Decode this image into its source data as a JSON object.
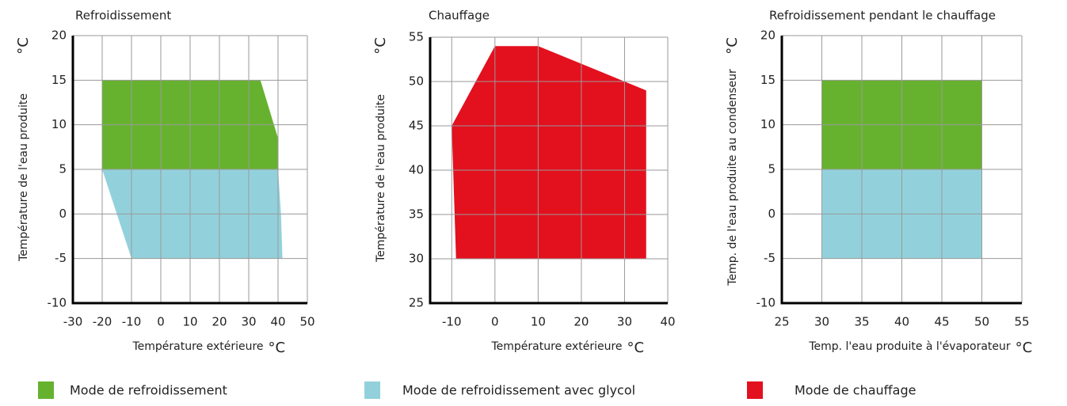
{
  "chart_data": [
    {
      "type": "polygon",
      "title": "Refroidissement",
      "xlabel": "Température extérieure",
      "xunit": "°C",
      "ylabel": "Température de l'eau produite",
      "yunit": "°C",
      "xlim": [
        -30,
        50
      ],
      "xticks": [
        -30,
        -20,
        -10,
        0,
        10,
        20,
        30,
        40,
        50
      ],
      "ylim": [
        -10,
        20
      ],
      "yticks": [
        -10,
        -5,
        0,
        5,
        10,
        15,
        20
      ],
      "grid": true,
      "series": [
        {
          "color": "#66b22e",
          "x": [
            -20,
            34,
            40,
            40,
            -20
          ],
          "y": [
            15,
            15,
            8.5,
            5,
            5
          ]
        },
        {
          "color": "#92d1dc",
          "x": [
            -20,
            40,
            41,
            41.5,
            -10
          ],
          "y": [
            5,
            5,
            0,
            -5,
            -5
          ]
        }
      ]
    },
    {
      "type": "polygon",
      "title": "Chauffage",
      "xlabel": "Température extérieure",
      "xunit": "°C",
      "ylabel": "Température de l'eau produite",
      "yunit": "°C",
      "xlim": [
        -15,
        40
      ],
      "xticks": [
        -10,
        0,
        10,
        20,
        30,
        40
      ],
      "ylim": [
        25,
        55
      ],
      "yticks": [
        25,
        30,
        35,
        40,
        45,
        50,
        55
      ],
      "grid": true,
      "series": [
        {
          "color": "#e3101e",
          "x": [
            -10,
            0,
            10,
            35,
            35,
            -9
          ],
          "y": [
            45,
            54,
            54,
            49,
            30,
            30
          ]
        }
      ]
    },
    {
      "type": "polygon",
      "title": "Refroidissement pendant le chauffage",
      "xlabel": "Temp. l'eau produite à l'évaporateur",
      "xunit": "°C",
      "ylabel": "Temp. de l'eau produite au condenseur",
      "yunit": "°C",
      "xlim": [
        25,
        55
      ],
      "xticks": [
        25,
        30,
        35,
        40,
        45,
        50,
        55
      ],
      "ylim": [
        -10,
        20
      ],
      "yticks": [
        -10,
        -5,
        0,
        5,
        10,
        15,
        20
      ],
      "grid": true,
      "series": [
        {
          "color": "#66b22e",
          "x": [
            30,
            50,
            50,
            30
          ],
          "y": [
            15,
            15,
            5,
            5
          ]
        },
        {
          "color": "#92d1dc",
          "x": [
            30,
            50,
            50,
            30
          ],
          "y": [
            5,
            5,
            -5,
            -5
          ]
        }
      ]
    }
  ],
  "legend": [
    {
      "name": "Mode de refroidissement",
      "color": "#66b22e"
    },
    {
      "name": "Mode de refroidissement avec glycol",
      "color": "#92d1dc"
    },
    {
      "name": "Mode de chauffage",
      "color": "#e3101e"
    }
  ]
}
